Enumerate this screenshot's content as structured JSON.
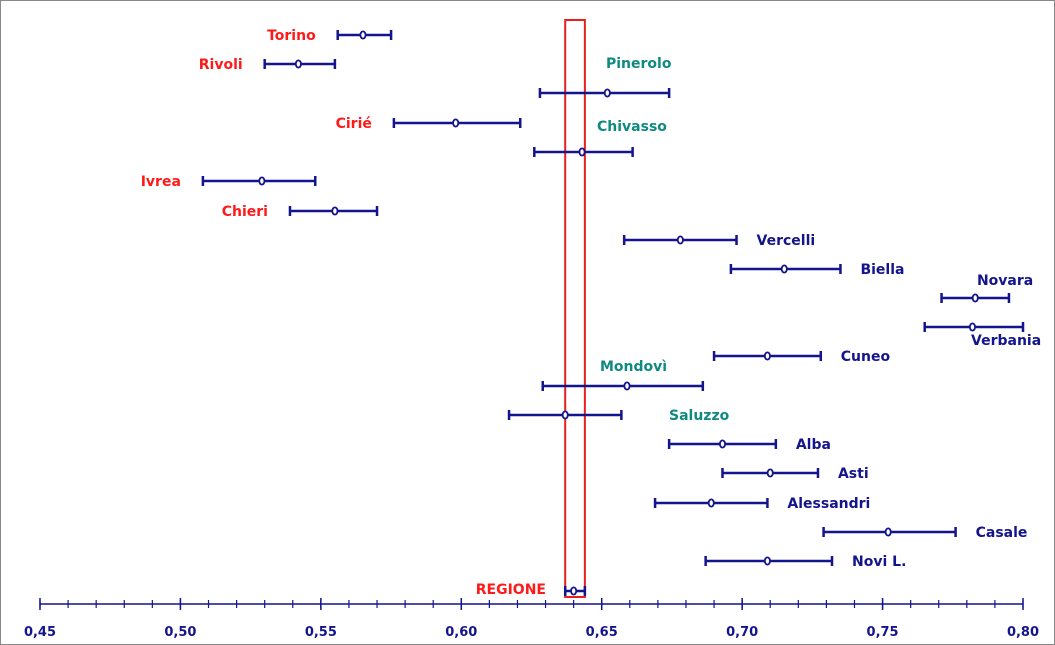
{
  "chart_data": {
    "type": "error-bar",
    "title": "",
    "xlabel": "",
    "ylabel": "",
    "xlim": [
      0.45,
      0.8
    ],
    "x_ticks": [
      "0,45",
      "0,50",
      "0,55",
      "0,60",
      "0,65",
      "0,70",
      "0,75",
      "0,80"
    ],
    "x_tick_values": [
      0.45,
      0.5,
      0.55,
      0.6,
      0.65,
      0.7,
      0.75,
      0.8
    ],
    "reference_band": {
      "low": 0.637,
      "high": 0.644,
      "color": "#e8201c"
    },
    "colors": {
      "bars": "#14148c",
      "red_label": "#ff1a1a",
      "teal_label": "#0f8a80",
      "navy_label": "#14148c"
    },
    "series": [
      {
        "name": "Torino",
        "value": 0.565,
        "low": 0.556,
        "high": 0.575,
        "label_group": "red",
        "label_side": "left"
      },
      {
        "name": "Rivoli",
        "value": 0.542,
        "low": 0.53,
        "high": 0.555,
        "label_group": "red",
        "label_side": "left"
      },
      {
        "name": "Pinerolo",
        "value": 0.652,
        "low": 0.628,
        "high": 0.674,
        "label_group": "teal",
        "label_side": "above"
      },
      {
        "name": "Cirié",
        "value": 0.598,
        "low": 0.576,
        "high": 0.621,
        "label_group": "red",
        "label_side": "left"
      },
      {
        "name": "Chivasso",
        "value": 0.643,
        "low": 0.626,
        "high": 0.661,
        "label_group": "teal",
        "label_side": "above"
      },
      {
        "name": "Ivrea",
        "value": 0.529,
        "low": 0.508,
        "high": 0.548,
        "label_group": "red",
        "label_side": "left"
      },
      {
        "name": "Chieri",
        "value": 0.555,
        "low": 0.539,
        "high": 0.57,
        "label_group": "red",
        "label_side": "left"
      },
      {
        "name": "Vercelli",
        "value": 0.678,
        "low": 0.658,
        "high": 0.698,
        "label_group": "navy",
        "label_side": "right"
      },
      {
        "name": "Biella",
        "value": 0.715,
        "low": 0.696,
        "high": 0.735,
        "label_group": "navy",
        "label_side": "right"
      },
      {
        "name": "Novara",
        "value": 0.783,
        "low": 0.771,
        "high": 0.795,
        "label_group": "navy",
        "label_side": "above-right"
      },
      {
        "name": "Verbania",
        "value": 0.782,
        "low": 0.765,
        "high": 0.8,
        "label_group": "navy",
        "label_side": "below-right"
      },
      {
        "name": "Cuneo",
        "value": 0.709,
        "low": 0.69,
        "high": 0.728,
        "label_group": "navy",
        "label_side": "right"
      },
      {
        "name": "Mondovì",
        "value": 0.659,
        "low": 0.629,
        "high": 0.686,
        "label_group": "teal",
        "label_side": "above"
      },
      {
        "name": "Saluzzo",
        "value": 0.637,
        "low": 0.617,
        "high": 0.657,
        "label_group": "teal",
        "label_side": "right"
      },
      {
        "name": "Alba",
        "value": 0.693,
        "low": 0.674,
        "high": 0.712,
        "label_group": "navy",
        "label_side": "right"
      },
      {
        "name": "Asti",
        "value": 0.71,
        "low": 0.693,
        "high": 0.727,
        "label_group": "navy",
        "label_side": "right"
      },
      {
        "name": "Alessandri",
        "value": 0.689,
        "low": 0.669,
        "high": 0.709,
        "label_group": "navy",
        "label_side": "right"
      },
      {
        "name": "Casale",
        "value": 0.752,
        "low": 0.729,
        "high": 0.776,
        "label_group": "navy",
        "label_side": "right"
      },
      {
        "name": "Novi L.",
        "value": 0.709,
        "low": 0.687,
        "high": 0.732,
        "label_group": "navy",
        "label_side": "right"
      },
      {
        "name": "REGIONE",
        "value": 0.64,
        "low": 0.637,
        "high": 0.644,
        "label_group": "red",
        "label_side": "left"
      }
    ]
  }
}
